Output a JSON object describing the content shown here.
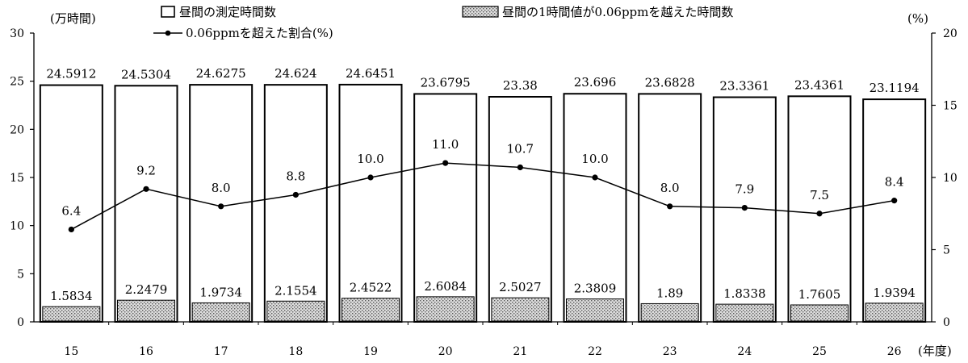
{
  "chart_data": {
    "type": "bar",
    "categories": [
      "15",
      "16",
      "17",
      "18",
      "19",
      "20",
      "21",
      "22",
      "23",
      "24",
      "25",
      "26"
    ],
    "series": [
      {
        "name": "昼間の測定時間数",
        "kind": "bar",
        "axis": "left",
        "fill": "#ffffff",
        "values": [
          24.5912,
          24.5304,
          24.6275,
          24.624,
          24.6451,
          23.6795,
          23.38,
          23.696,
          23.6828,
          23.3361,
          23.4361,
          23.1194
        ],
        "labels": [
          "24.5912",
          "24.5304",
          "24.6275",
          "24.624",
          "24.6451",
          "23.6795",
          "23.38",
          "23.696",
          "23.6828",
          "23.3361",
          "23.4361",
          "23.1194"
        ]
      },
      {
        "name": "昼間の1時間値が0.06ppmを越えた時間数",
        "kind": "bar",
        "axis": "left",
        "fill": "dotted-gray",
        "values": [
          1.5834,
          2.2479,
          1.9734,
          2.1554,
          2.4522,
          2.6084,
          2.5027,
          2.3809,
          1.89,
          1.8338,
          1.7605,
          1.9394
        ],
        "labels": [
          "1.5834",
          "2.2479",
          "1.9734",
          "2.1554",
          "2.4522",
          "2.6084",
          "2.5027",
          "2.3809",
          "1.89",
          "1.8338",
          "1.7605",
          "1.9394"
        ]
      },
      {
        "name": "0.06ppmを超えた割合(%)",
        "kind": "line",
        "axis": "right",
        "marker": "circle",
        "values": [
          6.4,
          9.2,
          8.0,
          8.8,
          10.0,
          11.0,
          10.7,
          10.0,
          8.0,
          7.9,
          7.5,
          8.4
        ],
        "labels": [
          "6.4",
          "9.2",
          "8.0",
          "8.8",
          "10.0",
          "11.0",
          "10.7",
          "10.0",
          "8.0",
          "7.9",
          "7.5",
          "8.4"
        ]
      }
    ],
    "left_axis": {
      "unit": "(万時間)",
      "ylim": [
        0,
        30
      ],
      "ticks": [
        "0",
        "5",
        "10",
        "15",
        "20",
        "25",
        "30"
      ]
    },
    "right_axis": {
      "unit": "(%)",
      "ylim": [
        0,
        20
      ],
      "ticks": [
        "0",
        "5",
        "10",
        "15",
        "20"
      ]
    },
    "xlabel": "(年度)",
    "grid": false,
    "legend": "top"
  }
}
